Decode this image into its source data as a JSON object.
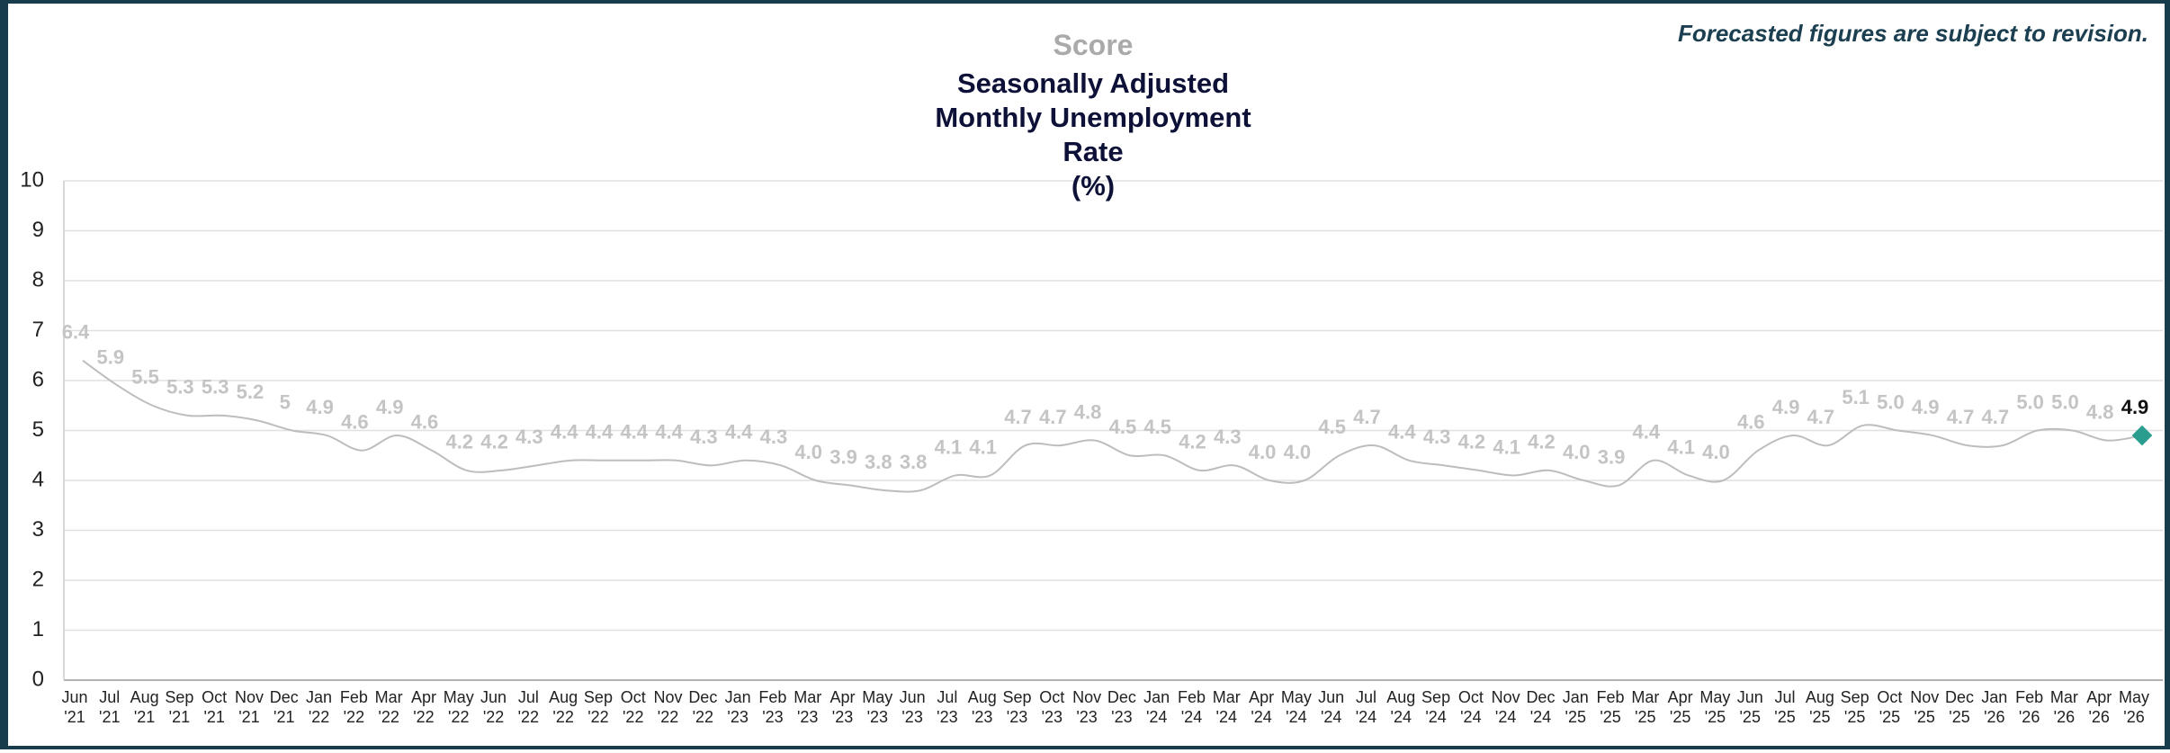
{
  "chart_data": {
    "type": "line",
    "label": "Score",
    "title": "Seasonally Adjusted\nMonthly Unemployment\nRate\n(%)",
    "annotation": "Forecasted figures are subject to revision.",
    "categories": [
      "Jun\n'21",
      "Jul\n'21",
      "Aug\n'21",
      "Sep\n'21",
      "Oct\n'21",
      "Nov\n'21",
      "Dec\n'21",
      "Jan\n'22",
      "Feb\n'22",
      "Mar\n'22",
      "Apr\n'22",
      "May\n'22",
      "Jun\n'22",
      "Jul\n'22",
      "Aug\n'22",
      "Sep\n'22",
      "Oct\n'22",
      "Nov\n'22",
      "Dec\n'22",
      "Jan\n'23",
      "Feb\n'23",
      "Mar\n'23",
      "Apr\n'23",
      "May\n'23",
      "Jun\n'23",
      "Jul\n'23",
      "Aug\n'23",
      "Sep\n'23",
      "Oct\n'23",
      "Nov\n'23",
      "Dec\n'23",
      "Jan\n'24",
      "Feb\n'24",
      "Mar\n'24",
      "Apr\n'24",
      "May\n'24",
      "Jun\n'24",
      "Jul\n'24",
      "Aug\n'24",
      "Sep\n'24",
      "Oct\n'24",
      "Nov\n'24",
      "Dec\n'24",
      "Jan\n'25",
      "Feb\n'25",
      "Mar\n'25",
      "Apr\n'25",
      "May\n'25",
      "Jun\n'25",
      "Jul\n'25",
      "Aug\n'25",
      "Sep\n'25",
      "Oct\n'25",
      "Nov\n'25",
      "Dec\n'25",
      "Jan\n'26",
      "Feb\n'26",
      "Mar\n'26",
      "Apr\n'26",
      "May\n'26"
    ],
    "values": [
      6.4,
      5.9,
      5.5,
      5.3,
      5.3,
      5.2,
      5,
      4.9,
      4.6,
      4.9,
      4.6,
      4.2,
      4.2,
      4.3,
      4.4,
      4.4,
      4.4,
      4.4,
      4.3,
      4.4,
      4.3,
      4.0,
      3.9,
      3.8,
      3.8,
      4.1,
      4.1,
      4.7,
      4.7,
      4.8,
      4.5,
      4.5,
      4.2,
      4.3,
      4.0,
      4.0,
      4.5,
      4.7,
      4.4,
      4.3,
      4.2,
      4.1,
      4.2,
      4.0,
      3.9,
      4.4,
      4.1,
      4.0,
      4.6,
      4.9,
      4.7,
      5.1,
      5.0,
      4.9,
      4.7,
      4.7,
      5.0,
      5.0,
      4.8,
      4.9
    ],
    "value_labels": [
      "6.4",
      "5.9",
      "5.5",
      "5.3",
      "5.3",
      "5.2",
      "5",
      "4.9",
      "4.6",
      "4.9",
      "4.6",
      "4.2",
      "4.2",
      "4.3",
      "4.4",
      "4.4",
      "4.4",
      "4.4",
      "4.3",
      "4.4",
      "4.3",
      "4.0",
      "3.9",
      "3.8",
      "3.8",
      "4.1",
      "4.1",
      "4.7",
      "4.7",
      "4.8",
      "4.5",
      "4.5",
      "4.2",
      "4.3",
      "4.0",
      "4.0",
      "4.5",
      "4.7",
      "4.4",
      "4.3",
      "4.2",
      "4.1",
      "4.2",
      "4.0",
      "3.9",
      "4.4",
      "4.1",
      "4.0",
      "4.6",
      "4.9",
      "4.7",
      "5.1",
      "5.0",
      "4.9",
      "4.7",
      "4.7",
      "5.0",
      "5.0",
      "4.8",
      "4.9"
    ],
    "color": "#bdbdbd",
    "highlight_color": "#2a9d8f",
    "ylim": [
      0,
      10
    ],
    "yticks": [
      0,
      1,
      2,
      3,
      4,
      5,
      6,
      7,
      8,
      9,
      10
    ],
    "grid": true
  }
}
